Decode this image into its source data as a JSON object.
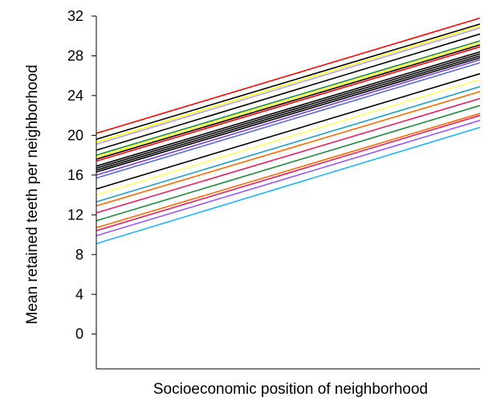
{
  "chart_data": {
    "type": "line",
    "xlabel": "Socioeconomic position of neighborhood",
    "ylabel": "Mean retained teeth per neighborhood",
    "y_ticks": [
      0,
      4,
      8,
      12,
      16,
      20,
      24,
      28,
      32
    ],
    "ylim": [
      -3.5,
      32
    ],
    "x_ticks_shown": false,
    "grid": false,
    "legend": "none",
    "series": [
      {
        "color": "#ff0000",
        "values": [
          20.2,
          31.8
        ]
      },
      {
        "color": "#000000",
        "values": [
          19.6,
          31.2
        ]
      },
      {
        "color": "#ffff00",
        "values": [
          19.3,
          31.0
        ]
      },
      {
        "color": "#b0a0ff",
        "values": [
          19.1,
          30.8
        ]
      },
      {
        "color": "#000000",
        "values": [
          18.5,
          30.2
        ]
      },
      {
        "color": "#1e8c3c",
        "values": [
          18.0,
          29.5
        ]
      },
      {
        "color": "#ffff00",
        "values": [
          17.8,
          29.3
        ]
      },
      {
        "color": "#000000",
        "values": [
          17.6,
          29.1
        ]
      },
      {
        "color": "#ff0000",
        "values": [
          17.4,
          28.9
        ]
      },
      {
        "color": "#000000",
        "values": [
          16.9,
          28.4
        ]
      },
      {
        "color": "#000000",
        "values": [
          16.7,
          28.2
        ]
      },
      {
        "color": "#000000",
        "values": [
          16.5,
          28.0
        ]
      },
      {
        "color": "#000000",
        "values": [
          16.3,
          27.8
        ]
      },
      {
        "color": "#7b3fd6",
        "values": [
          16.0,
          27.6
        ]
      },
      {
        "color": "#5a6fd6",
        "values": [
          15.7,
          27.3
        ]
      },
      {
        "color": "#000000",
        "values": [
          14.6,
          26.2
        ]
      },
      {
        "color": "#ffff66",
        "values": [
          14.0,
          25.6
        ]
      },
      {
        "color": "#1ea0c8",
        "values": [
          13.3,
          24.9
        ]
      },
      {
        "color": "#ff6a00",
        "values": [
          12.9,
          24.4
        ]
      },
      {
        "color": "#e91e63",
        "values": [
          12.2,
          23.7
        ]
      },
      {
        "color": "#1e8c3c",
        "values": [
          11.4,
          23.0
        ]
      },
      {
        "color": "#ff6a00",
        "values": [
          10.7,
          22.2
        ]
      },
      {
        "color": "#e91e63",
        "values": [
          10.4,
          22.0
        ]
      },
      {
        "color": "#9b59ff",
        "values": [
          9.9,
          21.5
        ]
      },
      {
        "color": "#1eb4ff",
        "values": [
          9.1,
          20.8
        ]
      }
    ]
  }
}
